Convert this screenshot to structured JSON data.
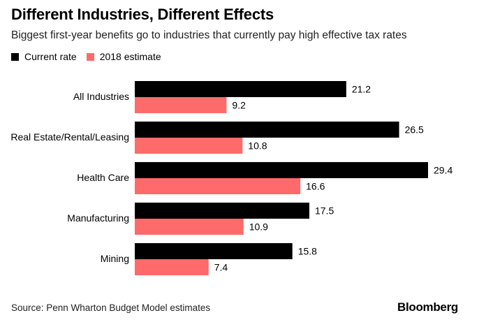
{
  "title": "Different Industries, Different Effects",
  "subtitle": "Biggest first-year benefits go to industries that currently pay high effective tax rates",
  "source": "Source: Penn Wharton Budget Model estimates",
  "brand": "Bloomberg",
  "colors": {
    "current": "#000000",
    "estimate": "#ff6a6a"
  },
  "chart_data": {
    "type": "bar",
    "orientation": "horizontal",
    "title": "Different Industries, Different Effects",
    "categories": [
      "All Industries",
      "Real Estate/Rental/Leasing",
      "Health Care",
      "Manufacturing",
      "Mining"
    ],
    "series": [
      {
        "name": "Current rate",
        "values": [
          21.2,
          26.5,
          29.4,
          17.5,
          15.8
        ]
      },
      {
        "name": "2018 estimate",
        "values": [
          9.2,
          10.8,
          16.6,
          10.9,
          7.4
        ]
      }
    ],
    "xlim": [
      0,
      29.4
    ],
    "xlabel": "",
    "ylabel": "",
    "grid": false,
    "legend": "top-left"
  }
}
